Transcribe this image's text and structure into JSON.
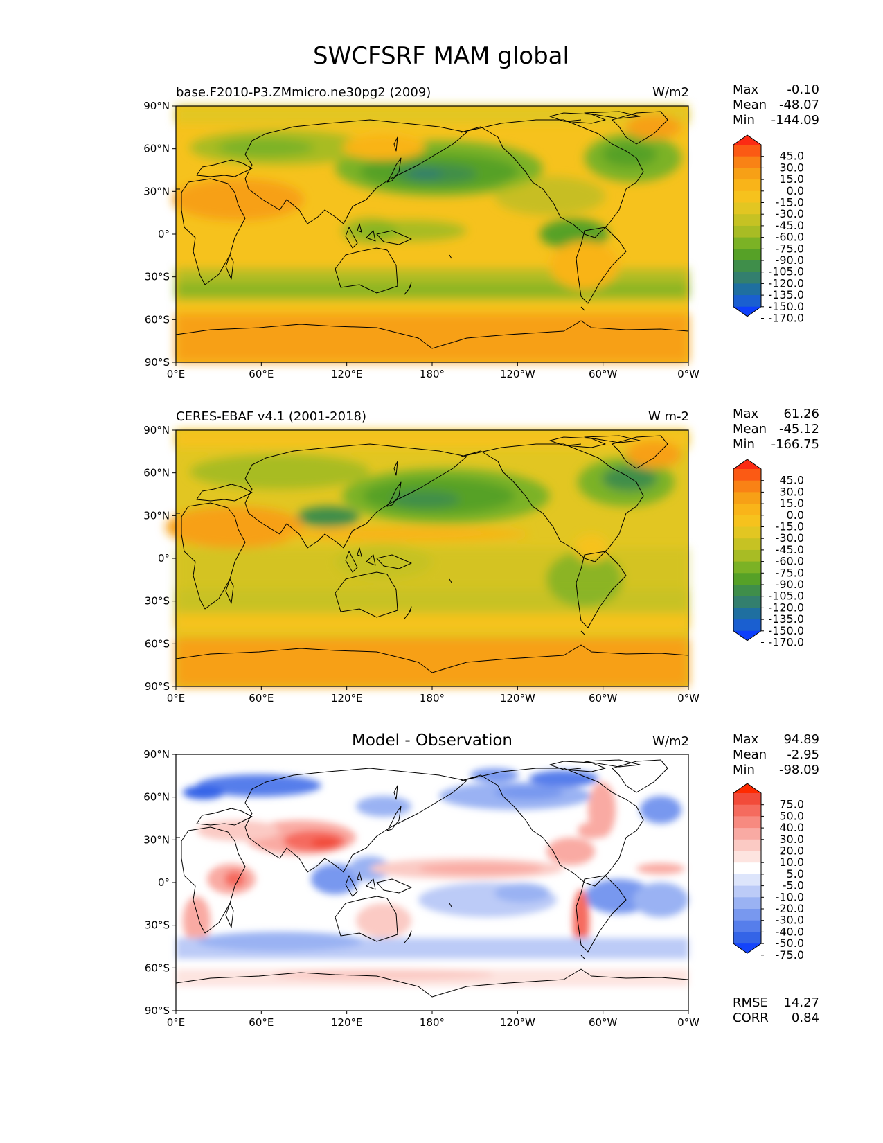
{
  "figure": {
    "title": "SWCFSRF MAM global"
  },
  "x_ticks": [
    "0°E",
    "60°E",
    "120°E",
    "180°",
    "120°W",
    "60°W",
    "0°W"
  ],
  "y_ticks": [
    "90°N",
    "60°N",
    "30°N",
    "0°",
    "30°S",
    "60°S",
    "90°S"
  ],
  "panels": [
    {
      "id": "model",
      "left_title": "base.F2010-P3.ZMmicro.ne30pg2 (2009)",
      "center_title": "",
      "units": "W/m2",
      "stats": [
        {
          "label": "Max",
          "value": "-0.10"
        },
        {
          "label": "Mean",
          "value": "-48.07"
        },
        {
          "label": "Min",
          "value": "-144.09"
        }
      ],
      "extra_stats": [],
      "colorbar": {
        "levels": [
          "45.0",
          "30.0",
          "15.0",
          "0.0",
          "-15.0",
          "-30.0",
          "-45.0",
          "-60.0",
          "-75.0",
          "-90.0",
          "-105.0",
          "-120.0",
          "-135.0",
          "-150.0",
          "-170.0"
        ],
        "colors": [
          "#fc2b13",
          "#fb5a14",
          "#f98215",
          "#f7a016",
          "#f9b419",
          "#f6c21d",
          "#e2c622",
          "#c6c223",
          "#a8bc24",
          "#7bb225",
          "#56a127",
          "#3f8e4a",
          "#337f6e",
          "#1f6fa0",
          "#1a5fd0",
          "#0d3ffb"
        ]
      }
    },
    {
      "id": "obs",
      "left_title": "CERES-EBAF v4.1 (2001-2018)",
      "center_title": "",
      "units": "W m-2",
      "stats": [
        {
          "label": "Max",
          "value": "61.26"
        },
        {
          "label": "Mean",
          "value": "-45.12"
        },
        {
          "label": "Min",
          "value": "-166.75"
        }
      ],
      "extra_stats": [],
      "colorbar": {
        "levels": [
          "45.0",
          "30.0",
          "15.0",
          "0.0",
          "-15.0",
          "-30.0",
          "-45.0",
          "-60.0",
          "-75.0",
          "-90.0",
          "-105.0",
          "-120.0",
          "-135.0",
          "-150.0",
          "-170.0"
        ],
        "colors": [
          "#fc2b13",
          "#fb5a14",
          "#f98215",
          "#f7a016",
          "#f9b419",
          "#f6c21d",
          "#e2c622",
          "#c6c223",
          "#a8bc24",
          "#7bb225",
          "#56a127",
          "#3f8e4a",
          "#337f6e",
          "#1f6fa0",
          "#1a5fd0",
          "#0d3ffb"
        ]
      }
    },
    {
      "id": "diff",
      "left_title": "",
      "center_title": "Model - Observation",
      "units": "W/m2",
      "stats": [
        {
          "label": "Max",
          "value": "94.89"
        },
        {
          "label": "Mean",
          "value": "-2.95"
        },
        {
          "label": "Min",
          "value": "-98.09"
        }
      ],
      "extra_stats": [
        {
          "label": "RMSE",
          "value": "14.27"
        },
        {
          "label": "CORR",
          "value": "0.84"
        }
      ],
      "colorbar": {
        "levels": [
          "75.0",
          "50.0",
          "40.0",
          "30.0",
          "20.0",
          "10.0",
          "5.0",
          "-5.0",
          "-10.0",
          "-20.0",
          "-30.0",
          "-40.0",
          "-50.0",
          "-75.0"
        ],
        "colors": [
          "#ff2a00",
          "#f24b3a",
          "#f56b5e",
          "#f78a80",
          "#f9aaa3",
          "#fbcac4",
          "#fde4e0",
          "#ffffff",
          "#dde5fb",
          "#bccbf7",
          "#9ab2f3",
          "#7898ef",
          "#567eeb",
          "#3464e7",
          "#1444fb"
        ]
      }
    }
  ]
}
